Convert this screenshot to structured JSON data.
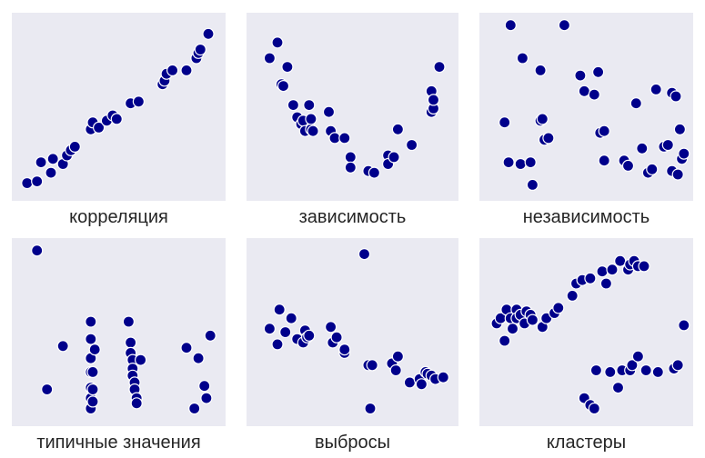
{
  "chart_data": [
    {
      "type": "scatter",
      "title": "корреляция",
      "xlim": [
        0,
        100
      ],
      "ylim": [
        0,
        100
      ],
      "grid": false,
      "points": [
        [
          4,
          6
        ],
        [
          9,
          7
        ],
        [
          11,
          18
        ],
        [
          16,
          12
        ],
        [
          17,
          20
        ],
        [
          22,
          17
        ],
        [
          24,
          22
        ],
        [
          26,
          25
        ],
        [
          28,
          27
        ],
        [
          36,
          37
        ],
        [
          37,
          41
        ],
        [
          40,
          38
        ],
        [
          44,
          42
        ],
        [
          47,
          45
        ],
        [
          49,
          43
        ],
        [
          56,
          52
        ],
        [
          60,
          53
        ],
        [
          72,
          63
        ],
        [
          73,
          65
        ],
        [
          74,
          69
        ],
        [
          77,
          71
        ],
        [
          84,
          71
        ],
        [
          89,
          78
        ],
        [
          90,
          81
        ],
        [
          91,
          83
        ],
        [
          95,
          92
        ]
      ]
    },
    {
      "type": "scatter",
      "title": "зависимость",
      "xlim": [
        0,
        100
      ],
      "ylim": [
        0,
        100
      ],
      "grid": false,
      "points": [
        [
          8,
          78
        ],
        [
          12,
          87
        ],
        [
          14,
          63
        ],
        [
          17,
          73
        ],
        [
          15,
          62
        ],
        [
          20,
          51
        ],
        [
          22,
          44
        ],
        [
          24,
          40
        ],
        [
          25,
          42
        ],
        [
          26,
          36
        ],
        [
          28,
          51
        ],
        [
          29,
          37
        ],
        [
          29,
          43
        ],
        [
          30,
          36
        ],
        [
          38,
          47
        ],
        [
          39,
          36
        ],
        [
          41,
          32
        ],
        [
          46,
          32
        ],
        [
          49,
          21
        ],
        [
          49,
          15
        ],
        [
          58,
          13
        ],
        [
          61,
          12
        ],
        [
          68,
          22
        ],
        [
          68,
          17
        ],
        [
          71,
          21
        ],
        [
          73,
          37
        ],
        [
          80,
          28
        ],
        [
          90,
          47
        ],
        [
          91,
          49
        ],
        [
          90,
          59
        ],
        [
          91,
          54
        ],
        [
          94,
          73
        ]
      ]
    },
    {
      "type": "scatter",
      "title": "независимость",
      "xlim": [
        0,
        100
      ],
      "ylim": [
        0,
        100
      ],
      "grid": false,
      "points": [
        [
          9,
          41
        ],
        [
          11,
          18
        ],
        [
          12,
          97
        ],
        [
          17,
          17
        ],
        [
          18,
          78
        ],
        [
          22,
          18
        ],
        [
          23,
          5
        ],
        [
          27,
          71
        ],
        [
          27,
          42
        ],
        [
          28,
          43
        ],
        [
          29,
          31
        ],
        [
          31,
          32
        ],
        [
          39,
          97
        ],
        [
          47,
          68
        ],
        [
          49,
          59
        ],
        [
          54,
          57
        ],
        [
          56,
          70
        ],
        [
          57,
          35
        ],
        [
          59,
          36
        ],
        [
          59,
          19
        ],
        [
          69,
          19
        ],
        [
          71,
          16
        ],
        [
          75,
          52
        ],
        [
          78,
          26
        ],
        [
          81,
          12
        ],
        [
          83,
          14
        ],
        [
          85,
          60
        ],
        [
          89,
          27
        ],
        [
          91,
          28
        ],
        [
          93,
          58
        ],
        [
          93,
          13
        ],
        [
          95,
          56
        ],
        [
          96,
          11
        ],
        [
          97,
          37
        ],
        [
          98,
          20
        ],
        [
          99,
          23
        ]
      ]
    },
    {
      "type": "scatter",
      "title": "типичные значения",
      "xlim": [
        0,
        100
      ],
      "ylim": [
        0,
        100
      ],
      "grid": false,
      "points": [
        [
          9,
          97
        ],
        [
          14,
          17
        ],
        [
          22,
          42
        ],
        [
          36,
          56
        ],
        [
          36,
          46
        ],
        [
          36,
          35
        ],
        [
          36,
          27
        ],
        [
          36,
          18
        ],
        [
          36,
          12
        ],
        [
          36,
          6
        ],
        [
          37,
          10
        ],
        [
          37,
          17
        ],
        [
          37,
          27
        ],
        [
          38,
          40
        ],
        [
          55,
          56
        ],
        [
          56,
          44
        ],
        [
          56,
          38
        ],
        [
          57,
          34
        ],
        [
          57,
          29
        ],
        [
          57,
          25
        ],
        [
          58,
          21
        ],
        [
          58,
          17
        ],
        [
          59,
          12
        ],
        [
          59,
          9
        ],
        [
          61,
          34
        ],
        [
          84,
          41
        ],
        [
          88,
          6
        ],
        [
          90,
          35
        ],
        [
          93,
          19
        ],
        [
          94,
          12
        ],
        [
          96,
          48
        ]
      ]
    },
    {
      "type": "scatter",
      "title": "выбросы",
      "xlim": [
        0,
        100
      ],
      "ylim": [
        0,
        100
      ],
      "grid": false,
      "points": [
        [
          8,
          52
        ],
        [
          12,
          43
        ],
        [
          13,
          63
        ],
        [
          16,
          50
        ],
        [
          19,
          58
        ],
        [
          22,
          46
        ],
        [
          25,
          44
        ],
        [
          26,
          51
        ],
        [
          27,
          47
        ],
        [
          28,
          48
        ],
        [
          39,
          53
        ],
        [
          40,
          44
        ],
        [
          42,
          47
        ],
        [
          46,
          38
        ],
        [
          46,
          40
        ],
        [
          58,
          31
        ],
        [
          60,
          31
        ],
        [
          70,
          32
        ],
        [
          72,
          28
        ],
        [
          73,
          36
        ],
        [
          79,
          21
        ],
        [
          84,
          23
        ],
        [
          85,
          20
        ],
        [
          87,
          27
        ],
        [
          88,
          26
        ],
        [
          90,
          25
        ],
        [
          92,
          23
        ],
        [
          96,
          24
        ],
        [
          59,
          6
        ],
        [
          56,
          95
        ]
      ]
    },
    {
      "type": "scatter",
      "title": "кластеры",
      "xlim": [
        0,
        100
      ],
      "ylim": [
        0,
        100
      ],
      "grid": false,
      "points": [
        [
          5,
          55
        ],
        [
          7,
          58
        ],
        [
          9,
          45
        ],
        [
          10,
          63
        ],
        [
          12,
          58
        ],
        [
          13,
          52
        ],
        [
          15,
          63
        ],
        [
          15,
          58
        ],
        [
          17,
          60
        ],
        [
          19,
          55
        ],
        [
          20,
          62
        ],
        [
          22,
          60
        ],
        [
          23,
          57
        ],
        [
          28,
          53
        ],
        [
          30,
          58
        ],
        [
          34,
          61
        ],
        [
          36,
          64
        ],
        [
          43,
          71
        ],
        [
          45,
          78
        ],
        [
          48,
          80
        ],
        [
          52,
          81
        ],
        [
          58,
          85
        ],
        [
          60,
          78
        ],
        [
          63,
          86
        ],
        [
          67,
          91
        ],
        [
          71,
          86
        ],
        [
          72,
          89
        ],
        [
          74,
          91
        ],
        [
          76,
          88
        ],
        [
          79,
          88
        ],
        [
          49,
          12
        ],
        [
          52,
          8
        ],
        [
          54,
          6
        ],
        [
          55,
          28
        ],
        [
          62,
          27
        ],
        [
          66,
          18
        ],
        [
          68,
          28
        ],
        [
          72,
          28
        ],
        [
          73,
          31
        ],
        [
          76,
          36
        ],
        [
          80,
          28
        ],
        [
          86,
          27
        ],
        [
          94,
          29
        ],
        [
          96,
          31
        ],
        [
          99,
          54
        ]
      ]
    }
  ]
}
